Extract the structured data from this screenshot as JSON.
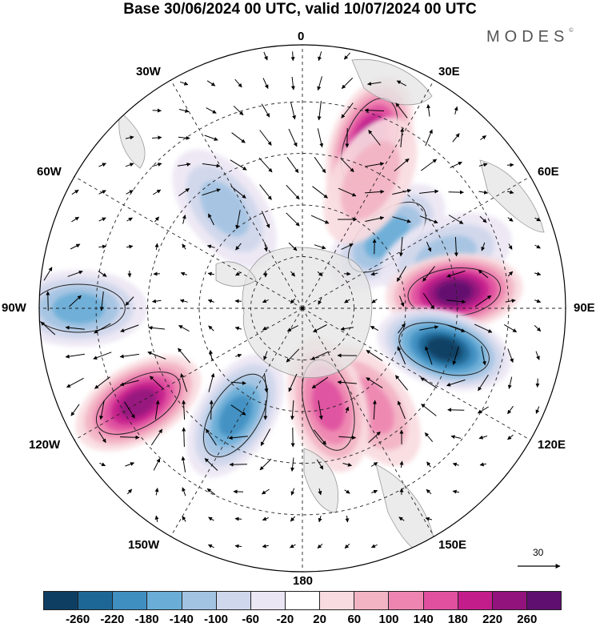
{
  "title": "Base 30/06/2024 00 UTC, valid 10/07/2024 00 UTC",
  "brand": {
    "name": "MODES",
    "mark": "©"
  },
  "longitude_labels": {
    "top": "0",
    "upper_left": "30W",
    "upper_right": "30E",
    "left_upper": "60W",
    "right_upper": "60E",
    "left": "90W",
    "right": "90E",
    "left_lower": "120W",
    "right_lower": "120E",
    "lower_left": "150W",
    "lower_right": "150E",
    "bottom": "180"
  },
  "vector_reference": {
    "value": "30"
  },
  "colorbar": {
    "colors": [
      "#0e3e62",
      "#1d6796",
      "#3f8fc1",
      "#6aaed7",
      "#a3c3e3",
      "#cfd7ec",
      "#ebe6f3",
      "#ffffff",
      "#f8dbe0",
      "#f2b3c3",
      "#ee85b1",
      "#e0509f",
      "#c31d8b",
      "#93137d",
      "#5f0f6f"
    ],
    "tick_labels": [
      "-260",
      "-220",
      "-180",
      "-140",
      "-100",
      "-60",
      "-20",
      "20",
      "60",
      "100",
      "140",
      "180",
      "220",
      "260"
    ]
  },
  "anomaly_centers": [
    {
      "lon": 22,
      "colat": 0.68,
      "value": 220
    },
    {
      "lon": 50,
      "colat": 0.42,
      "value": -140
    },
    {
      "lon": 70,
      "colat": 0.58,
      "value": -100
    },
    {
      "lon": 84,
      "colat": 0.58,
      "value": 260
    },
    {
      "lon": 106,
      "colat": 0.56,
      "value": -260
    },
    {
      "lon": 145,
      "colat": 0.45,
      "value": 100
    },
    {
      "lon": 165,
      "colat": 0.38,
      "value": 140
    },
    {
      "lon": 212,
      "colat": 0.48,
      "value": -180
    },
    {
      "lon": 240,
      "colat": 0.72,
      "value": 220
    },
    {
      "lon": 270,
      "colat": 0.85,
      "value": -140
    },
    {
      "lon": 322,
      "colat": 0.48,
      "value": -100
    },
    {
      "lon": 28,
      "colat": 0.55,
      "value": 60
    }
  ]
}
